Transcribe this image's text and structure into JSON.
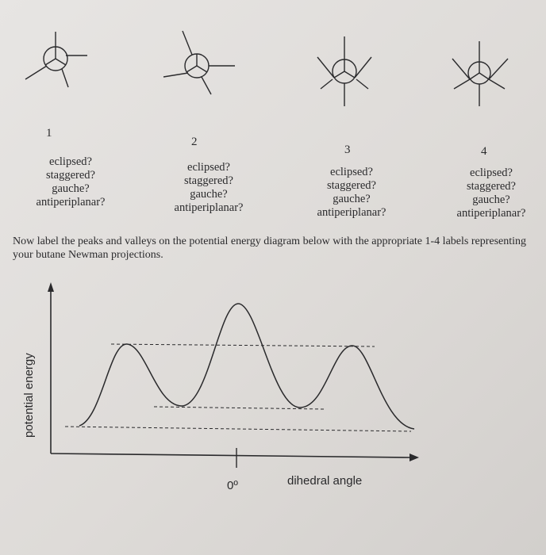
{
  "projections": [
    {
      "number": "1",
      "questions": [
        "eclipsed?",
        "staggered?",
        "gauche?",
        "antiperiplanar?"
      ]
    },
    {
      "number": "2",
      "questions": [
        "eclipsed?",
        "staggered?",
        "gauche?",
        "antiperiplanar?"
      ]
    },
    {
      "number": "3",
      "questions": [
        "eclipsed?",
        "staggered?",
        "gauche?",
        "antiperiplanar?"
      ]
    },
    {
      "number": "4",
      "questions": [
        "eclipsed?",
        "staggered?",
        "gauche?",
        "antiperiplanar?"
      ]
    }
  ],
  "instructions": "Now label the peaks and valleys on the potential energy diagram below with the appropriate 1-4 labels representing your butane Newman projections.",
  "diagram": {
    "y_axis_label": "potential energy",
    "x_axis_label": "dihedral angle",
    "x_tick_label": "0º"
  },
  "colors": {
    "ink": "#2a2a2c",
    "paper": "#e4e2df"
  }
}
